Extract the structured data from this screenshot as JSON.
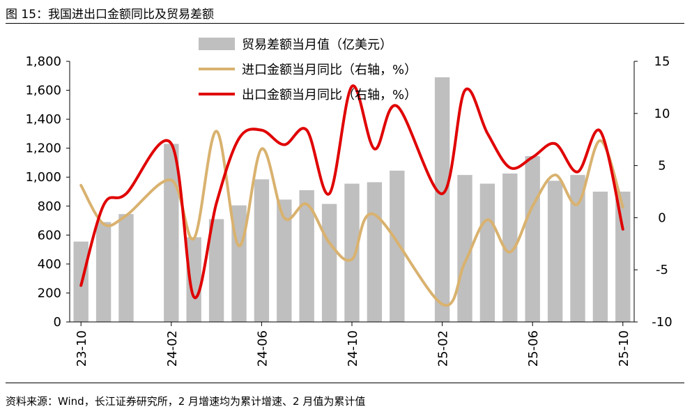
{
  "figure": {
    "title": "图 15：我国进出口金额同比及贸易差额",
    "source": "资料来源：Wind，长江证券研究所，2 月增速均为累计增速、2 月值为累计值"
  },
  "chart_data": {
    "type": "bar+line",
    "title": "我国进出口金额同比及贸易差额",
    "x_labels_shown": [
      "23-10",
      "24-02",
      "24-06",
      "24-10",
      "25-02",
      "25-06",
      "25-10"
    ],
    "months": [
      "23-10",
      "23-11",
      "23-12",
      "24-01",
      "24-02",
      "24-03",
      "24-04",
      "24-05",
      "24-06",
      "24-07",
      "24-08",
      "24-09",
      "24-10",
      "24-11",
      "24-12",
      "25-01",
      "25-02",
      "25-03",
      "25-04",
      "25-05",
      "25-06",
      "25-07",
      "25-08",
      "25-09",
      "25-10"
    ],
    "left_axis": {
      "range": [
        0,
        1800
      ],
      "ticks": [
        "0",
        "200",
        "400",
        "600",
        "800",
        "1,000",
        "1,200",
        "1,400",
        "1,600",
        "1,800"
      ],
      "tick_values": [
        0,
        200,
        400,
        600,
        800,
        1000,
        1200,
        1400,
        1600,
        1800
      ]
    },
    "right_axis": {
      "range": [
        -10,
        15
      ],
      "ticks": [
        "-10",
        "-5",
        "0",
        "5",
        "10",
        "15"
      ],
      "tick_values": [
        -10,
        -5,
        0,
        5,
        10,
        15
      ]
    },
    "series": [
      {
        "name": "贸易差额当月值（亿美元）",
        "kind": "bar",
        "axis": "left",
        "color": "#bfbfbf",
        "values": [
          555,
          690,
          745,
          null,
          1230,
          585,
          710,
          805,
          985,
          845,
          910,
          815,
          955,
          965,
          1045,
          null,
          1690,
          1015,
          955,
          1025,
          1145,
          975,
          1015,
          900,
          900
        ]
      },
      {
        "name": "进口金额当月同比（右轴，%）",
        "kind": "line",
        "axis": "right",
        "color": "#d9b26f",
        "values": [
          3.1,
          -0.6,
          0.2,
          null,
          3.6,
          -2.0,
          8.3,
          -2.7,
          6.6,
          0.0,
          1.3,
          -2.4,
          -4.0,
          0.3,
          null,
          null,
          -8.3,
          -4.3,
          -0.2,
          -3.3,
          1.1,
          4.1,
          1.3,
          7.4,
          1.0
        ]
      },
      {
        "name": "出口金额当月同比（右轴，%）",
        "kind": "line",
        "axis": "right",
        "color": "#e00000",
        "values": [
          -6.5,
          1.2,
          2.3,
          null,
          7.1,
          -7.6,
          1.4,
          7.6,
          8.4,
          7.0,
          8.4,
          2.3,
          12.6,
          6.6,
          10.7,
          null,
          2.3,
          12.2,
          8.1,
          4.8,
          5.8,
          7.1,
          4.4,
          8.3,
          -1.1
        ]
      }
    ]
  }
}
